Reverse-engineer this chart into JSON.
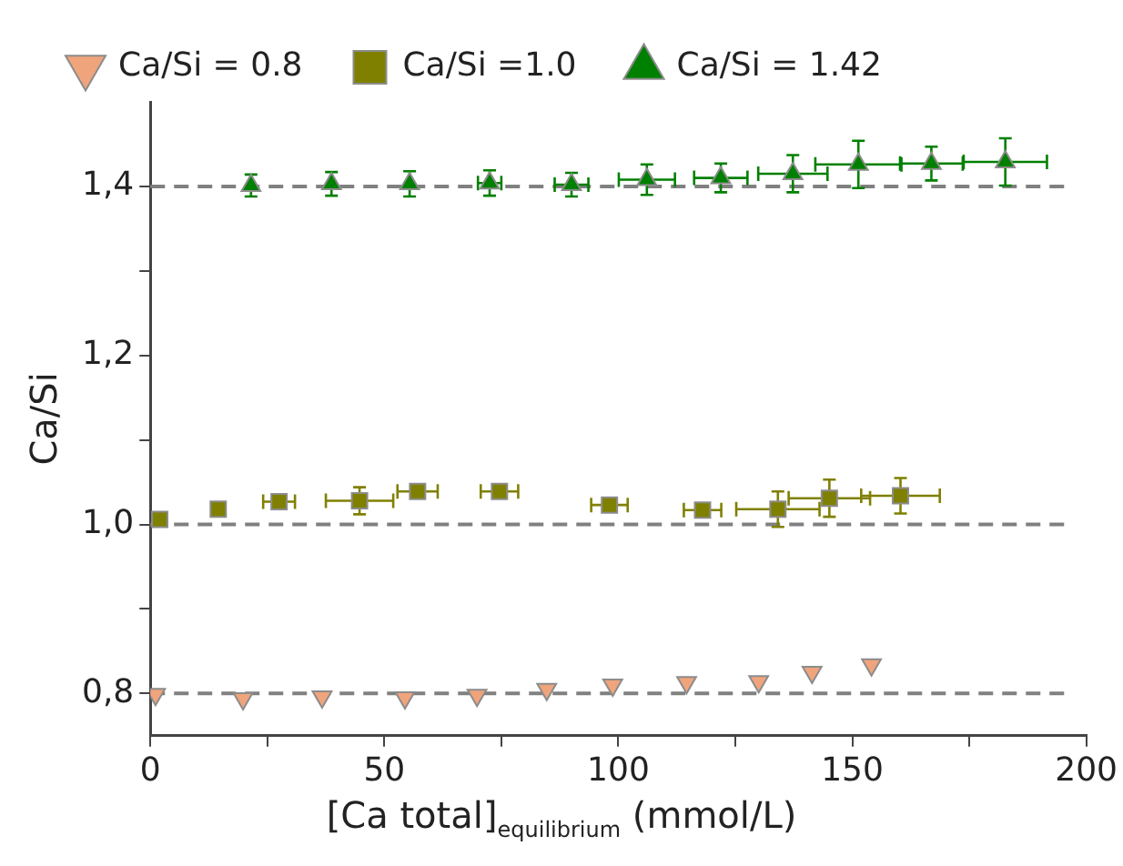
{
  "chart_data": {
    "type": "scatter",
    "xlabel": "[Ca total]$_{equilibrium}$ (mmol/L)",
    "ylabel": "Ca/Si",
    "legend": "top",
    "xlim": [
      0,
      200
    ],
    "xticks": [
      0,
      {
        "value": 25,
        "label": null
      },
      50,
      {
        "value": 75,
        "label": null
      },
      100,
      {
        "value": 125,
        "label": null
      },
      150,
      {
        "value": 175,
        "label": null
      },
      200
    ],
    "ylim": [
      0.75,
      1.5
    ],
    "yticks": [
      {
        "value": 0.8,
        "label": "0,8"
      },
      {
        "value": 0.9,
        "label": null
      },
      {
        "value": 1.0,
        "label": "1,0"
      },
      {
        "value": 1.1,
        "label": null
      },
      {
        "value": 1.2,
        "label": "1,2"
      },
      {
        "value": 1.3,
        "label": null
      },
      {
        "value": 1.4,
        "label": "1,4"
      }
    ],
    "grid": false,
    "ref_lines": [
      {
        "axis": "y",
        "value": 0.8,
        "color": "#808080",
        "line_style": "dashed"
      },
      {
        "axis": "y",
        "value": 1.0,
        "color": "#808080",
        "line_style": "dashed"
      },
      {
        "axis": "y",
        "value": 1.4,
        "color": "#808080",
        "line_style": "dashed"
      }
    ],
    "series": [
      {
        "name": "Ca/Si = 0.8",
        "color": "#f0a47c",
        "marker": "triangle-down",
        "x": [
          1.1,
          19.8,
          36.7,
          54.4,
          69.8,
          84.7,
          98.8,
          114.6,
          130.0,
          141.4,
          154.1
        ],
        "values": [
          0.799,
          0.794,
          0.796,
          0.795,
          0.798,
          0.805,
          0.81,
          0.813,
          0.814,
          0.825,
          0.834
        ]
      },
      {
        "name": "Ca/Si =1.0",
        "color": "#808000",
        "marker": "square",
        "x": [
          2.0,
          14.5,
          27.5,
          44.7,
          57.1,
          74.6,
          98.1,
          118.0,
          134.1,
          145.1,
          160.3
        ],
        "values": [
          1.006,
          1.018,
          1.027,
          1.028,
          1.039,
          1.039,
          1.023,
          1.017,
          1.018,
          1.031,
          1.034
        ],
        "errors": [
          null,
          null,
          null,
          0.016,
          null,
          null,
          null,
          null,
          0.021,
          0.022,
          0.021
        ],
        "xerrors": [
          null,
          null,
          3.4,
          7.2,
          4.3,
          4.0,
          3.9,
          4.0,
          8.9,
          8.7,
          8.4
        ]
      },
      {
        "name": "Ca/Si = 1.42",
        "color": "#008000",
        "marker": "triangle",
        "x": [
          21.5,
          38.7,
          55.4,
          72.5,
          90.0,
          106.1,
          121.9,
          137.3,
          151.3,
          166.9,
          182.7
        ],
        "values": [
          1.401,
          1.403,
          1.403,
          1.404,
          1.402,
          1.408,
          1.41,
          1.415,
          1.426,
          1.427,
          1.429
        ],
        "errors": [
          0.013,
          0.014,
          0.015,
          0.015,
          0.014,
          0.018,
          0.017,
          0.022,
          0.028,
          0.02,
          0.028
        ],
        "xerrors": [
          null,
          null,
          null,
          2.5,
          3.6,
          6.0,
          5.7,
          7.4,
          9.2,
          6.7,
          8.9
        ]
      }
    ]
  }
}
